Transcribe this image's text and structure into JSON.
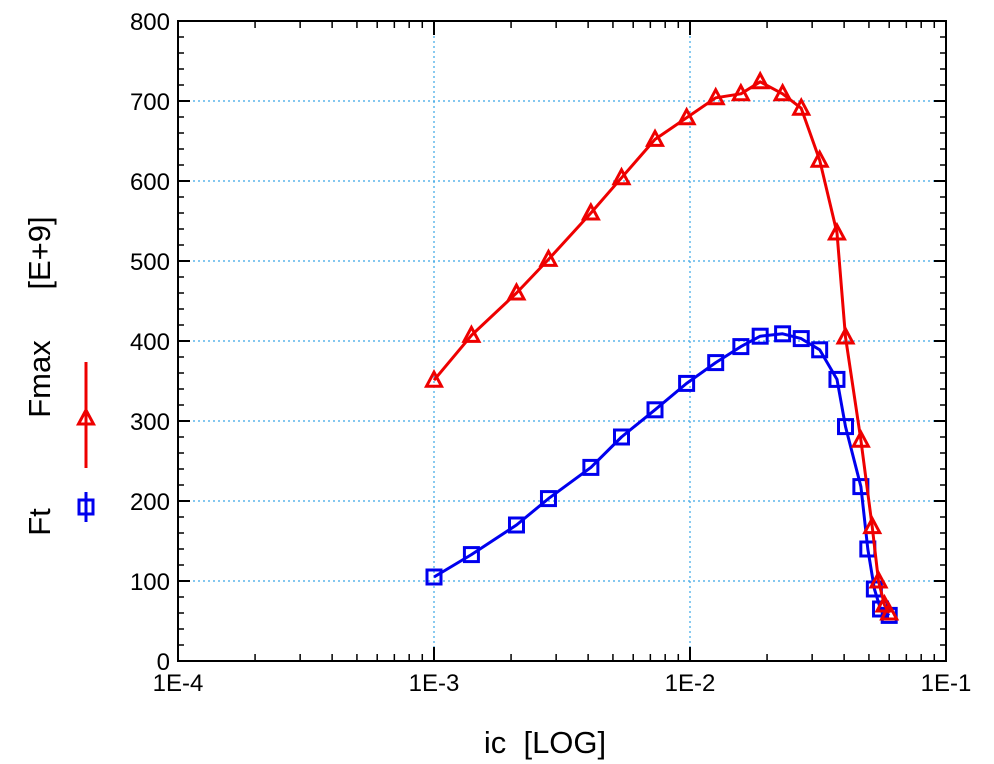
{
  "chart_data": {
    "type": "line",
    "x_scale": "log",
    "xlabel": "ic  [LOG]",
    "ylabel_prefix": "Ft  Fmax  [E+9]",
    "ylabel_parts": {
      "series1_name": "Ft",
      "series2_name": "Fmax",
      "unit": "[E+9]"
    },
    "xlim": [
      0.0001,
      0.1
    ],
    "ylim": [
      0,
      800
    ],
    "x_tick_labels": [
      "1E-4",
      "1E-3",
      "1E-2",
      "1E-1"
    ],
    "x_tick_values": [
      0.0001,
      0.001,
      0.01,
      0.1
    ],
    "y_tick_labels": [
      "0",
      "100",
      "200",
      "300",
      "400",
      "500",
      "600",
      "700",
      "800"
    ],
    "y_tick_values": [
      0,
      100,
      200,
      300,
      400,
      500,
      600,
      700,
      800
    ],
    "grid": true,
    "series": [
      {
        "name": "Ft",
        "marker": "square",
        "color": "#0000ee",
        "x": [
          0.001,
          0.0014,
          0.0021,
          0.0028,
          0.0041,
          0.0054,
          0.0073,
          0.0097,
          0.0126,
          0.0158,
          0.0188,
          0.023,
          0.0272,
          0.0321,
          0.0375,
          0.0405,
          0.0465,
          0.0495,
          0.0525,
          0.0555,
          0.06
        ],
        "y": [
          105,
          133,
          170,
          203,
          242,
          280,
          314,
          347,
          373,
          393,
          406,
          409,
          403,
          389,
          352,
          293,
          218,
          140,
          90,
          65,
          57
        ]
      },
      {
        "name": "Fmax",
        "marker": "triangle",
        "color": "#ee0000",
        "x": [
          0.001,
          0.0014,
          0.0021,
          0.0028,
          0.0041,
          0.0054,
          0.0073,
          0.0097,
          0.0126,
          0.0158,
          0.0188,
          0.023,
          0.0272,
          0.0321,
          0.0375,
          0.0405,
          0.0465,
          0.0515,
          0.0545,
          0.0575,
          0.06
        ],
        "y": [
          351,
          407,
          460,
          502,
          560,
          604,
          652,
          679,
          704,
          709,
          724,
          709,
          691,
          626,
          535,
          405,
          276,
          168,
          100,
          70,
          60
        ]
      }
    ]
  }
}
